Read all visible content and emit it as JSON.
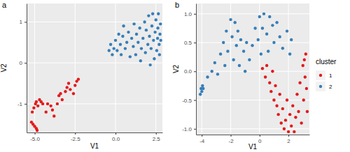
{
  "chart_data": [
    {
      "type": "scatter",
      "title": "a",
      "x_label": "V1",
      "y_label": "V2",
      "xlim": [
        -5.5,
        2.9
      ],
      "ylim": [
        -1.7,
        1.45
      ],
      "xticks": [
        {
          "value": -5,
          "label": "-5.0"
        },
        {
          "value": -2.5,
          "label": "-2.5"
        },
        {
          "value": 0,
          "label": "0.0"
        },
        {
          "value": 2.5,
          "label": "2.5"
        }
      ],
      "yticks": [
        -1,
        0,
        1
      ],
      "grid": true,
      "series": [
        {
          "name": "1",
          "color": "#e41a1c",
          "x": [
            -5.2,
            -5.1,
            -5.0,
            -4.9,
            -4.85,
            -5.15,
            -5.05,
            -4.95,
            -4.9,
            -4.8,
            -4.7,
            -4.6,
            -4.5,
            -4.3,
            -4.2,
            -4.0,
            -3.9,
            -3.8,
            -3.6,
            -3.5,
            -3.4,
            -3.3,
            -3.1,
            -3.0,
            -2.9,
            -2.8,
            -2.6,
            -2.5,
            -2.4,
            -2.3
          ],
          "values": [
            -1.45,
            -1.5,
            -1.55,
            -1.6,
            -1.65,
            -1.2,
            -1.1,
            -1.0,
            -0.95,
            -1.05,
            -0.9,
            -0.95,
            -1.0,
            -1.2,
            -1.0,
            -1.05,
            -1.15,
            -1.3,
            -1.0,
            -0.8,
            -0.75,
            -0.9,
            -0.7,
            -0.6,
            -0.5,
            -0.65,
            -0.75,
            -0.55,
            -0.45,
            -0.4
          ]
        },
        {
          "name": "2",
          "color": "#377eb8",
          "x": [
            -0.4,
            -0.3,
            -0.2,
            -0.1,
            0.0,
            0.1,
            0.2,
            0.3,
            0.35,
            0.45,
            0.5,
            0.6,
            0.7,
            0.8,
            0.9,
            1.0,
            1.1,
            1.15,
            1.25,
            1.3,
            1.4,
            1.5,
            1.55,
            1.6,
            1.7,
            1.8,
            1.85,
            1.9,
            2.0,
            2.05,
            2.1,
            2.15,
            2.2,
            2.25,
            2.3,
            2.35,
            2.4,
            2.45,
            2.5,
            2.55,
            2.6,
            2.62,
            2.65,
            2.7,
            2.72,
            2.75,
            2.78,
            2.8
          ],
          "values": [
            0.3,
            0.45,
            0.2,
            0.35,
            0.55,
            0.3,
            0.7,
            0.45,
            0.2,
            0.65,
            0.9,
            0.35,
            0.5,
            0.75,
            0.15,
            0.6,
            0.4,
            0.95,
            0.2,
            0.7,
            0.5,
            0.85,
            0.05,
            0.35,
            0.6,
            1.0,
            0.25,
            0.8,
            0.45,
            1.15,
            0.65,
            -0.05,
            0.35,
            0.9,
            1.2,
            0.55,
            0.1,
            0.75,
            1.05,
            0.3,
            0.6,
            0.85,
            1.2,
            0.45,
            0.2,
            0.7,
            0.95,
            0.55
          ]
        }
      ]
    },
    {
      "type": "scatter",
      "title": "b",
      "x_label": "V1",
      "y_label": "V2",
      "xlim": [
        -4.4,
        3.45
      ],
      "ylim": [
        -1.1,
        1.18
      ],
      "xticks": [
        -4,
        -2,
        0,
        2
      ],
      "yticks": [
        {
          "value": -1,
          "label": "-1.0"
        },
        {
          "value": -0.5,
          "label": "-0.5"
        },
        {
          "value": 0,
          "label": "0.0"
        },
        {
          "value": 0.5,
          "label": "0.5"
        },
        {
          "value": 1,
          "label": "1.0"
        }
      ],
      "grid": true,
      "legend": "right",
      "legend_title": "cluster",
      "series": [
        {
          "name": "1",
          "color": "#e41a1c",
          "x": [
            0.2,
            0.4,
            0.5,
            0.7,
            0.8,
            0.9,
            1.0,
            1.1,
            1.2,
            1.3,
            1.4,
            1.5,
            1.6,
            1.7,
            1.8,
            1.9,
            2.0,
            2.1,
            2.2,
            2.3,
            2.4,
            2.5,
            2.6,
            2.7,
            2.8,
            2.9,
            3.0,
            3.05,
            3.1,
            3.15,
            3.2,
            3.25,
            3.3
          ],
          "values": [
            0.05,
            -0.1,
            0.1,
            -0.2,
            -0.35,
            0.0,
            -0.5,
            -0.25,
            -0.6,
            -0.75,
            -0.4,
            -0.9,
            -0.65,
            -1.0,
            -0.85,
            -0.5,
            -1.05,
            -0.75,
            -0.95,
            -0.6,
            -1.05,
            -0.8,
            -0.4,
            -0.7,
            -0.2,
            -0.9,
            0.1,
            -0.5,
            0.2,
            -0.1,
            0.3,
            -0.3,
            -0.7
          ]
        },
        {
          "name": "2",
          "color": "#377eb8",
          "x": [
            -4.1,
            -4.05,
            -4.0,
            -3.95,
            -3.9,
            -3.6,
            -3.3,
            -3.1,
            -2.9,
            -2.7,
            -2.5,
            -2.4,
            -2.3,
            -2.2,
            -2.0,
            -1.9,
            -1.8,
            -1.7,
            -1.6,
            -1.5,
            -1.4,
            -1.3,
            -1.1,
            -1.0,
            -0.9,
            -0.7,
            -0.5,
            -0.3,
            -0.1,
            0.0,
            0.1,
            0.2,
            0.3,
            0.5,
            0.6,
            0.7,
            0.9,
            1.0,
            1.2,
            1.4,
            1.6,
            1.9,
            2.1,
            2.2
          ],
          "values": [
            -0.4,
            -0.3,
            -0.35,
            -0.25,
            -0.3,
            -0.1,
            0.0,
            0.15,
            -0.05,
            0.3,
            0.5,
            0.1,
            0.7,
            0.35,
            0.9,
            0.6,
            0.2,
            0.85,
            0.45,
            0.7,
            0.1,
            0.55,
            0.35,
            0.0,
            0.5,
            0.2,
            0.45,
            0.75,
            0.55,
            0.95,
            0.3,
            0.75,
            1.0,
            0.65,
            0.35,
            0.95,
            0.8,
            0.5,
            0.85,
            0.6,
            0.4,
            0.7,
            0.3,
            0.55
          ]
        }
      ]
    }
  ]
}
